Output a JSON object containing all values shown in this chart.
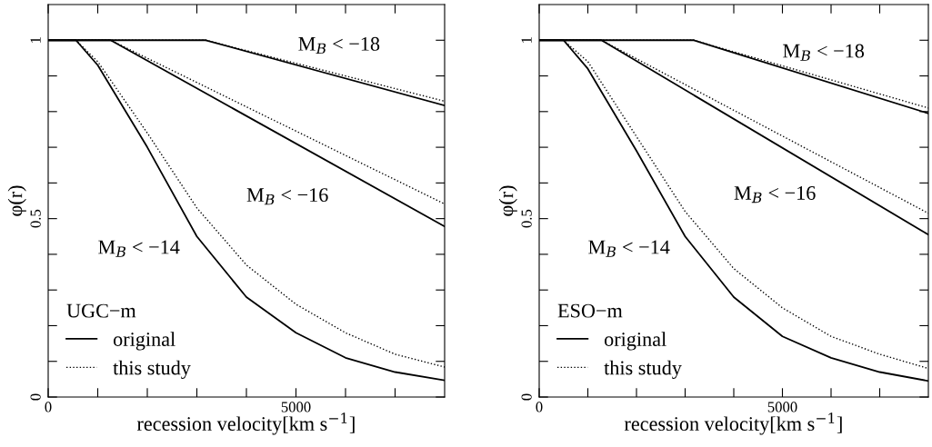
{
  "chart_data": [
    {
      "type": "line",
      "xlabel": "recession velocity[km s$^{−1}$]",
      "ylabel": "φ(r)",
      "legend_title": "UGC−m",
      "legend": "bottom left",
      "xlim": [
        0,
        8000
      ],
      "ylim": [
        0,
        1.1
      ],
      "xticks": [
        0,
        {
          "value": 1000,
          "label": null
        },
        {
          "value": 2000,
          "label": null
        },
        {
          "value": 3000,
          "label": null
        },
        {
          "value": 4000,
          "label": null
        },
        5000,
        {
          "value": 6000,
          "label": null
        },
        {
          "value": 7000,
          "label": null
        }
      ],
      "yticks": [
        0,
        {
          "value": 0.1,
          "label": null
        },
        {
          "value": 0.2,
          "label": null
        },
        {
          "value": 0.3,
          "label": null
        },
        {
          "value": 0.4,
          "label": null
        },
        0.5,
        {
          "value": 0.6,
          "label": null
        },
        {
          "value": 0.7,
          "label": null
        },
        {
          "value": 0.8,
          "label": null
        },
        {
          "value": 0.9,
          "label": null
        },
        1
      ],
      "annotations": [
        "M$_{B}$ < −18",
        "M$_{B}$ < −16",
        "M$_{B}$ < −14"
      ],
      "series": [
        {
          "name": "original",
          "color": "#000000",
          "line_style": "solid",
          "x": [
            0,
            560,
            1000,
            2000,
            3000,
            4000,
            5000,
            6000,
            7000,
            8000
          ],
          "values": [
            1,
            1,
            0.93,
            0.7,
            0.45,
            0.28,
            0.18,
            0.11,
            0.07,
            0.047
          ]
        },
        {
          "name": "this study",
          "color": "#000000",
          "line_style": "dotted",
          "x": [
            0,
            560,
            1000,
            2000,
            3000,
            4000,
            5000,
            6000,
            7000,
            8000
          ],
          "values": [
            1,
            1,
            0.94,
            0.74,
            0.53,
            0.37,
            0.26,
            0.18,
            0.12,
            0.084
          ]
        },
        {
          "color": "#000000",
          "line_style": "solid",
          "x": [
            0,
            1260,
            8000
          ],
          "values": [
            1,
            1,
            0.478
          ]
        },
        {
          "color": "#000000",
          "line_style": "dotted",
          "x": [
            0,
            1260,
            8000
          ],
          "values": [
            1,
            1,
            0.541
          ]
        },
        {
          "color": "#000000",
          "line_style": "solid",
          "x": [
            0,
            3180,
            8000
          ],
          "values": [
            1,
            1,
            0.817
          ]
        },
        {
          "color": "#000000",
          "line_style": "dotted",
          "x": [
            0,
            3180,
            8000
          ],
          "values": [
            1,
            1,
            0.829
          ]
        }
      ]
    },
    {
      "type": "line",
      "xlabel": "recession velocity[km s$^{−1}$]",
      "ylabel": "φ(r)",
      "legend_title": "ESO−m",
      "legend": "bottom left",
      "xlim": [
        0,
        8000
      ],
      "ylim": [
        0,
        1.1
      ],
      "xticks": [
        0,
        {
          "value": 1000,
          "label": null
        },
        {
          "value": 2000,
          "label": null
        },
        {
          "value": 3000,
          "label": null
        },
        {
          "value": 4000,
          "label": null
        },
        5000,
        {
          "value": 6000,
          "label": null
        },
        {
          "value": 7000,
          "label": null
        }
      ],
      "yticks": [
        0,
        {
          "value": 0.1,
          "label": null
        },
        {
          "value": 0.2,
          "label": null
        },
        {
          "value": 0.3,
          "label": null
        },
        {
          "value": 0.4,
          "label": null
        },
        0.5,
        {
          "value": 0.6,
          "label": null
        },
        {
          "value": 0.7,
          "label": null
        },
        {
          "value": 0.8,
          "label": null
        },
        {
          "value": 0.9,
          "label": null
        },
        1
      ],
      "annotations": [
        "M$_{B}$ < −18",
        "M$_{B}$ < −16",
        "M$_{B}$ < −14"
      ],
      "series": [
        {
          "name": "original",
          "color": "#000000",
          "line_style": "solid",
          "x": [
            0,
            500,
            1000,
            2000,
            3000,
            4000,
            5000,
            6000,
            7000,
            8000
          ],
          "values": [
            1,
            1,
            0.92,
            0.69,
            0.45,
            0.28,
            0.17,
            0.11,
            0.07,
            0.045
          ]
        },
        {
          "name": "this study",
          "color": "#000000",
          "line_style": "dotted",
          "x": [
            0,
            500,
            1000,
            2000,
            3000,
            4000,
            5000,
            6000,
            7000,
            8000
          ],
          "values": [
            1,
            1,
            0.94,
            0.73,
            0.52,
            0.36,
            0.25,
            0.17,
            0.12,
            0.08
          ]
        },
        {
          "color": "#000000",
          "line_style": "solid",
          "x": [
            0,
            1280,
            8000
          ],
          "values": [
            1,
            1,
            0.455
          ]
        },
        {
          "color": "#000000",
          "line_style": "dotted",
          "x": [
            0,
            1280,
            8000
          ],
          "values": [
            1,
            1,
            0.515
          ]
        },
        {
          "color": "#000000",
          "line_style": "solid",
          "x": [
            0,
            3180,
            8000
          ],
          "values": [
            1,
            1,
            0.795
          ]
        },
        {
          "color": "#000000",
          "line_style": "dotted",
          "x": [
            0,
            3180,
            8000
          ],
          "values": [
            1,
            1,
            0.81
          ]
        }
      ]
    }
  ]
}
